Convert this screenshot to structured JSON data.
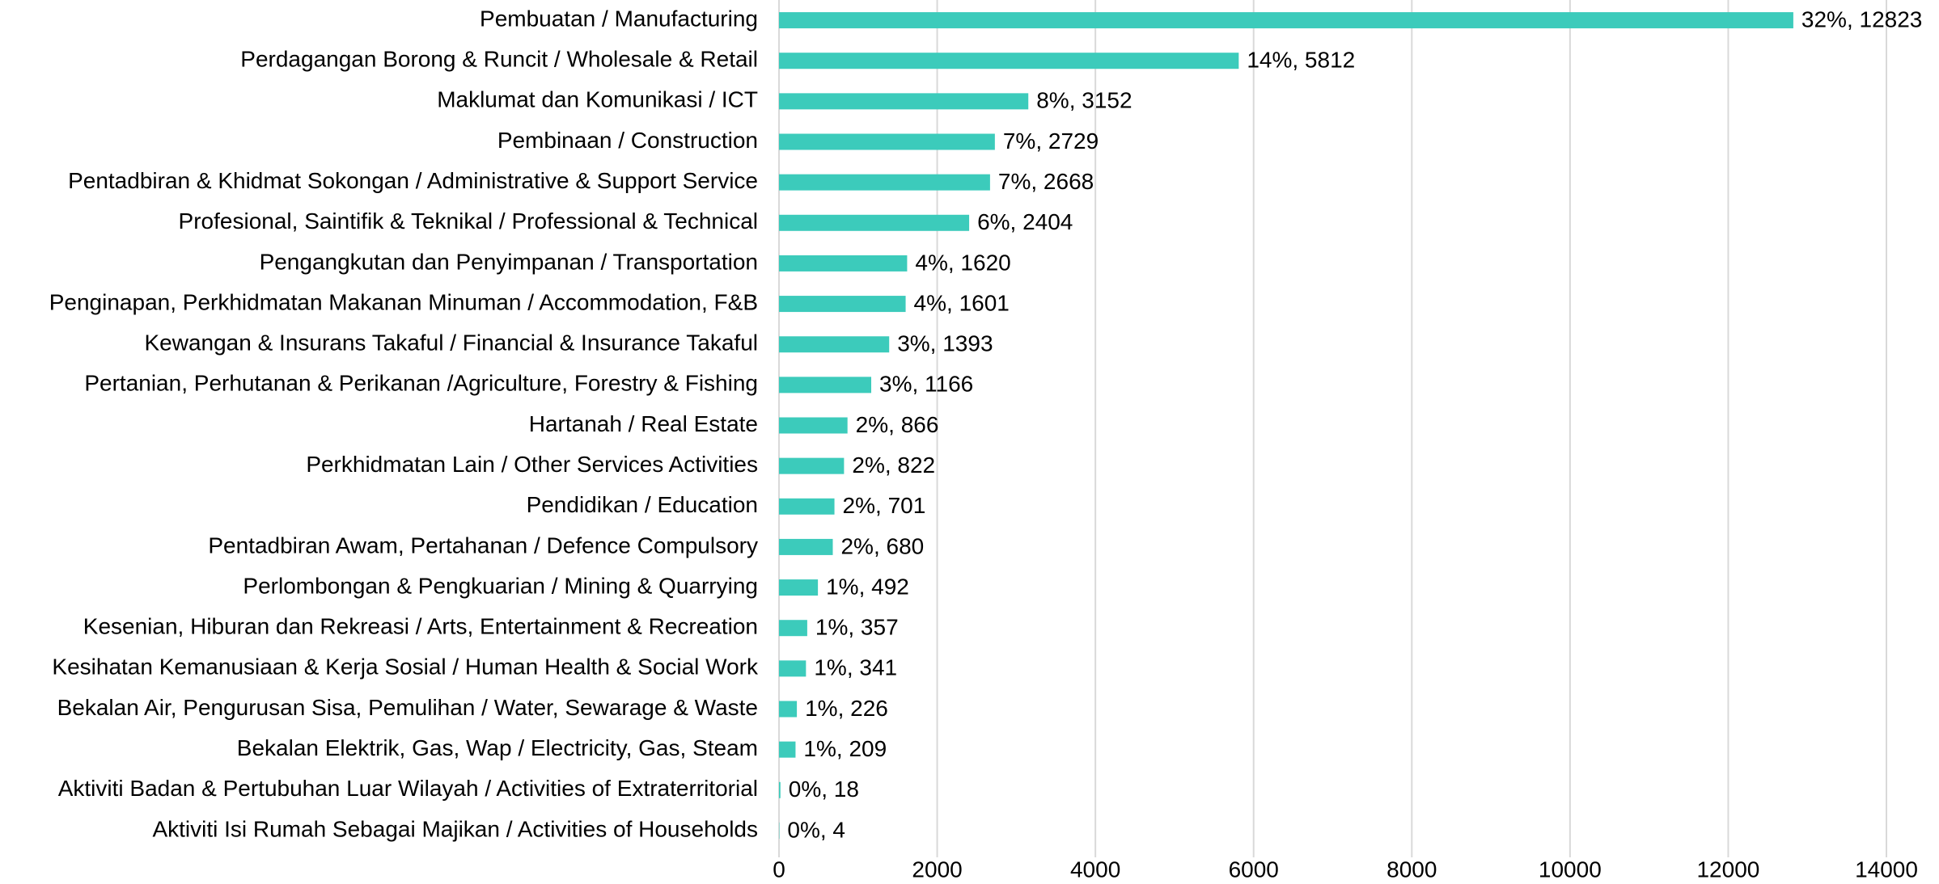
{
  "chart_data": {
    "type": "bar",
    "orientation": "horizontal",
    "categories": [
      "Pembuatan / Manufacturing",
      "Perdagangan Borong & Runcit / Wholesale & Retail",
      "Maklumat dan Komunikasi / ICT",
      "Pembinaan / Construction",
      "Pentadbiran & Khidmat Sokongan / Administrative & Support Service",
      "Profesional, Saintifik & Teknikal / Professional & Technical",
      "Pengangkutan dan Penyimpanan / Transportation",
      "Penginapan, Perkhidmatan Makanan Minuman / Accommodation, F&B",
      "Kewangan & Insurans Takaful / Financial & Insurance Takaful",
      "Pertanian, Perhutanan & Perikanan /Agriculture, Forestry & Fishing",
      "Hartanah / Real Estate",
      "Perkhidmatan Lain / Other Services Activities",
      "Pendidikan / Education",
      "Pentadbiran Awam, Pertahanan / Defence Compulsory",
      "Perlombongan & Pengkuarian / Mining & Quarrying",
      "Kesenian, Hiburan dan Rekreasi / Arts, Entertainment & Recreation",
      "Kesihatan Kemanusiaan & Kerja Sosial / Human Health & Social Work",
      "Bekalan Air, Pengurusan Sisa, Pemulihan / Water, Sewarage & Waste",
      "Bekalan Elektrik, Gas, Wap / Electricity, Gas, Steam",
      "Aktiviti Badan & Pertubuhan Luar Wilayah / Activities of Extraterritorial",
      "Aktiviti Isi Rumah Sebagai Majikan / Activities of Households"
    ],
    "values": [
      12823,
      5812,
      3152,
      2729,
      2668,
      2404,
      1620,
      1601,
      1393,
      1166,
      866,
      822,
      701,
      680,
      492,
      357,
      341,
      226,
      209,
      18,
      4
    ],
    "value_labels": [
      "32%, 12823",
      "14%, 5812",
      "8%, 3152",
      "7%, 2729",
      "7%, 2668",
      "6%, 2404",
      "4%, 1620",
      "4%, 1601",
      "3%, 1393",
      "3%, 1166",
      "2%, 866",
      "2%, 822",
      "2%, 701",
      "2%, 680",
      "1%, 492",
      "1%, 357",
      "1%, 341",
      "1%, 226",
      "1%, 209",
      "0%, 18",
      "0%, 4"
    ],
    "color": "#3ccbbb",
    "xlim": [
      0,
      14000
    ],
    "xticks": [
      0,
      2000,
      4000,
      6000,
      8000,
      10000,
      12000,
      14000
    ],
    "grid": true
  }
}
